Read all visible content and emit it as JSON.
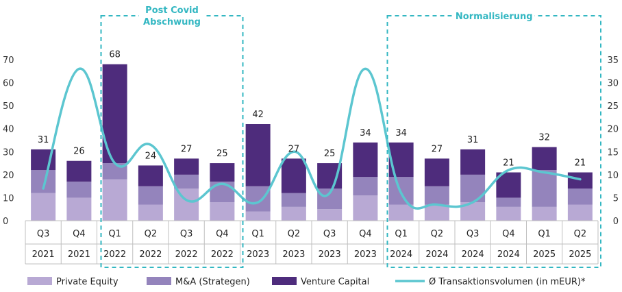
{
  "chart_data": {
    "type": "bar",
    "stacked": true,
    "categories": [
      {
        "quarter": "Q3",
        "year": "2021"
      },
      {
        "quarter": "Q4",
        "year": "2021"
      },
      {
        "quarter": "Q1",
        "year": "2022"
      },
      {
        "quarter": "Q2",
        "year": "2022"
      },
      {
        "quarter": "Q3",
        "year": "2022"
      },
      {
        "quarter": "Q4",
        "year": "2022"
      },
      {
        "quarter": "Q1",
        "year": "2023"
      },
      {
        "quarter": "Q2",
        "year": "2023"
      },
      {
        "quarter": "Q3",
        "year": "2023"
      },
      {
        "quarter": "Q4",
        "year": "2023"
      },
      {
        "quarter": "Q1",
        "year": "2024"
      },
      {
        "quarter": "Q2",
        "year": "2024"
      },
      {
        "quarter": "Q3",
        "year": "2024"
      },
      {
        "quarter": "Q4",
        "year": "2024"
      },
      {
        "quarter": "Q1",
        "year": "2025"
      },
      {
        "quarter": "Q2",
        "year": "2025"
      }
    ],
    "series": [
      {
        "name": "Private Equity",
        "color": "#b8a9d4",
        "values": [
          12,
          10,
          18,
          7,
          14,
          8,
          4,
          6,
          5,
          11,
          7,
          7,
          8,
          6,
          6,
          7
        ]
      },
      {
        "name": "M&A (Strategen)",
        "color": "#9484bc",
        "values": [
          10,
          7,
          7,
          8,
          6,
          9,
          11,
          6,
          9,
          8,
          12,
          8,
          12,
          4,
          16,
          7
        ]
      },
      {
        "name": "Venture Capital",
        "color": "#4e2c7c",
        "values": [
          9,
          9,
          43,
          9,
          7,
          8,
          27,
          15,
          11,
          15,
          15,
          12,
          11,
          11,
          10,
          7
        ]
      }
    ],
    "totals": [
      31,
      26,
      68,
      24,
      27,
      25,
      42,
      27,
      25,
      34,
      34,
      27,
      31,
      21,
      32,
      21
    ],
    "line": {
      "name": "Ø Transaktionsvolumen (in mEUR)*",
      "color": "#5cc6d0",
      "axis": "right",
      "values": [
        7,
        33,
        12.5,
        16.5,
        4.5,
        8,
        4,
        15,
        6,
        33,
        6,
        3.5,
        4,
        11,
        10.5,
        9
      ]
    },
    "y_left": {
      "min": 0,
      "max": 70,
      "ticks": [
        0,
        10,
        20,
        30,
        40,
        50,
        60,
        70
      ]
    },
    "y_right": {
      "min": 0,
      "max": 35,
      "ticks": [
        0,
        5,
        10,
        15,
        20,
        25,
        30,
        35
      ]
    },
    "annotations": [
      {
        "text_lines": [
          "Post Covid",
          "Abschwung"
        ],
        "from": 2,
        "to": 5
      },
      {
        "text_lines": [
          "Normalisierung"
        ],
        "from": 10,
        "to": 15
      }
    ],
    "legend_placement": "bottom",
    "grid": false
  }
}
